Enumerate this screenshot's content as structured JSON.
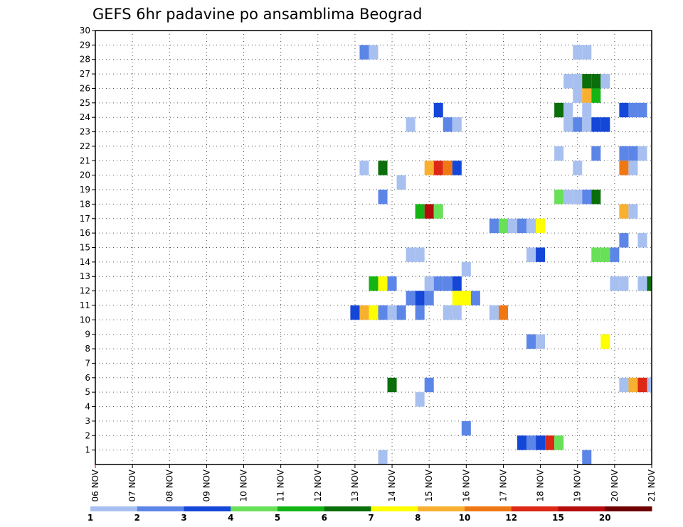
{
  "chart_data": {
    "type": "heatmap",
    "title": "GEFS 6hr padavine po ansamblima Beograd",
    "xlabel": "",
    "ylabel": "",
    "x_ticks": [
      "06 NOV",
      "07 NOV",
      "08 NOV",
      "09 NOV",
      "10 NOV",
      "11 NOV",
      "12 NOV",
      "13 NOV",
      "14 NOV",
      "15 NOV",
      "16 NOV",
      "17 NOV",
      "18 NOV",
      "19 NOV",
      "20 NOV",
      "21 NOV"
    ],
    "x_axis_units": "6-hour steps from 06 NOV 00Z",
    "xlim_steps": [
      0,
      60
    ],
    "y_ticks": [
      1,
      2,
      3,
      4,
      5,
      6,
      7,
      8,
      9,
      10,
      11,
      12,
      13,
      14,
      15,
      16,
      17,
      18,
      19,
      20,
      21,
      22,
      23,
      24,
      25,
      26,
      27,
      28,
      29,
      30
    ],
    "ylim": [
      0,
      30
    ],
    "grid": true,
    "legend_position": "bottom",
    "legend_levels": [
      1,
      2,
      3,
      4,
      5,
      6,
      7,
      8,
      10,
      12,
      15,
      20
    ],
    "legend_colors": [
      "#a8c0f0",
      "#5c85e8",
      "#1446d8",
      "#68e058",
      "#14b414",
      "#0a6e0a",
      "#ffff00",
      "#f8b030",
      "#f07814",
      "#dc2814",
      "#b40c0c",
      "#6e0000"
    ],
    "cells": [
      {
        "step": 29,
        "member": 29,
        "class": 2
      },
      {
        "step": 30,
        "member": 29,
        "class": 1
      },
      {
        "step": 52,
        "member": 29,
        "class": 1
      },
      {
        "step": 53,
        "member": 29,
        "class": 1
      },
      {
        "step": 51,
        "member": 27,
        "class": 1
      },
      {
        "step": 52,
        "member": 27,
        "class": 1
      },
      {
        "step": 53,
        "member": 27,
        "class": 6
      },
      {
        "step": 54,
        "member": 27,
        "class": 6
      },
      {
        "step": 55,
        "member": 27,
        "class": 1
      },
      {
        "step": 52,
        "member": 26,
        "class": 1
      },
      {
        "step": 53,
        "member": 26,
        "class": 8
      },
      {
        "step": 54,
        "member": 26,
        "class": 5
      },
      {
        "step": 37,
        "member": 25,
        "class": 3
      },
      {
        "step": 50,
        "member": 25,
        "class": 6
      },
      {
        "step": 51,
        "member": 25,
        "class": 1
      },
      {
        "step": 53,
        "member": 25,
        "class": 1
      },
      {
        "step": 57,
        "member": 25,
        "class": 3
      },
      {
        "step": 58,
        "member": 25,
        "class": 2
      },
      {
        "step": 59,
        "member": 25,
        "class": 2
      },
      {
        "step": 34,
        "member": 24,
        "class": 1
      },
      {
        "step": 38,
        "member": 24,
        "class": 2
      },
      {
        "step": 39,
        "member": 24,
        "class": 1
      },
      {
        "step": 51,
        "member": 24,
        "class": 1
      },
      {
        "step": 52,
        "member": 24,
        "class": 2
      },
      {
        "step": 53,
        "member": 24,
        "class": 1
      },
      {
        "step": 54,
        "member": 24,
        "class": 3
      },
      {
        "step": 55,
        "member": 24,
        "class": 3
      },
      {
        "step": 50,
        "member": 22,
        "class": 1
      },
      {
        "step": 54,
        "member": 22,
        "class": 2
      },
      {
        "step": 57,
        "member": 22,
        "class": 2
      },
      {
        "step": 58,
        "member": 22,
        "class": 2
      },
      {
        "step": 59,
        "member": 22,
        "class": 1
      },
      {
        "step": 29,
        "member": 21,
        "class": 1
      },
      {
        "step": 31,
        "member": 21,
        "class": 6
      },
      {
        "step": 36,
        "member": 21,
        "class": 8
      },
      {
        "step": 37,
        "member": 21,
        "class": 10
      },
      {
        "step": 38,
        "member": 21,
        "class": 9
      },
      {
        "step": 39,
        "member": 21,
        "class": 3
      },
      {
        "step": 52,
        "member": 21,
        "class": 1
      },
      {
        "step": 57,
        "member": 21,
        "class": 9
      },
      {
        "step": 58,
        "member": 21,
        "class": 1
      },
      {
        "step": 33,
        "member": 20,
        "class": 1
      },
      {
        "step": 31,
        "member": 19,
        "class": 2
      },
      {
        "step": 50,
        "member": 19,
        "class": 4
      },
      {
        "step": 51,
        "member": 19,
        "class": 1
      },
      {
        "step": 52,
        "member": 19,
        "class": 1
      },
      {
        "step": 53,
        "member": 19,
        "class": 2
      },
      {
        "step": 54,
        "member": 19,
        "class": 6
      },
      {
        "step": 35,
        "member": 18,
        "class": 5
      },
      {
        "step": 36,
        "member": 18,
        "class": 11
      },
      {
        "step": 37,
        "member": 18,
        "class": 4
      },
      {
        "step": 57,
        "member": 18,
        "class": 8
      },
      {
        "step": 58,
        "member": 18,
        "class": 1
      },
      {
        "step": 43,
        "member": 17,
        "class": 2
      },
      {
        "step": 44,
        "member": 17,
        "class": 4
      },
      {
        "step": 45,
        "member": 17,
        "class": 1
      },
      {
        "step": 46,
        "member": 17,
        "class": 2
      },
      {
        "step": 47,
        "member": 17,
        "class": 1
      },
      {
        "step": 48,
        "member": 17,
        "class": 7
      },
      {
        "step": 57,
        "member": 16,
        "class": 2
      },
      {
        "step": 59,
        "member": 16,
        "class": 1
      },
      {
        "step": 34,
        "member": 15,
        "class": 1
      },
      {
        "step": 35,
        "member": 15,
        "class": 1
      },
      {
        "step": 47,
        "member": 15,
        "class": 1
      },
      {
        "step": 48,
        "member": 15,
        "class": 3
      },
      {
        "step": 54,
        "member": 15,
        "class": 4
      },
      {
        "step": 55,
        "member": 15,
        "class": 4
      },
      {
        "step": 56,
        "member": 15,
        "class": 2
      },
      {
        "step": 40,
        "member": 14,
        "class": 1
      },
      {
        "step": 30,
        "member": 13,
        "class": 5
      },
      {
        "step": 31,
        "member": 13,
        "class": 7
      },
      {
        "step": 32,
        "member": 13,
        "class": 2
      },
      {
        "step": 36,
        "member": 13,
        "class": 1
      },
      {
        "step": 37,
        "member": 13,
        "class": 2
      },
      {
        "step": 38,
        "member": 13,
        "class": 2
      },
      {
        "step": 39,
        "member": 13,
        "class": 3
      },
      {
        "step": 56,
        "member": 13,
        "class": 1
      },
      {
        "step": 57,
        "member": 13,
        "class": 1
      },
      {
        "step": 59,
        "member": 13,
        "class": 1
      },
      {
        "step": 60,
        "member": 13,
        "class": 6
      },
      {
        "step": 34,
        "member": 12,
        "class": 2
      },
      {
        "step": 35,
        "member": 12,
        "class": 3
      },
      {
        "step": 36,
        "member": 12,
        "class": 2
      },
      {
        "step": 39,
        "member": 12,
        "class": 7
      },
      {
        "step": 40,
        "member": 12,
        "class": 7
      },
      {
        "step": 41,
        "member": 12,
        "class": 2
      },
      {
        "step": 28,
        "member": 11,
        "class": 3
      },
      {
        "step": 29,
        "member": 11,
        "class": 8
      },
      {
        "step": 30,
        "member": 11,
        "class": 7
      },
      {
        "step": 31,
        "member": 11,
        "class": 2
      },
      {
        "step": 32,
        "member": 11,
        "class": 1
      },
      {
        "step": 33,
        "member": 11,
        "class": 2
      },
      {
        "step": 35,
        "member": 11,
        "class": 2
      },
      {
        "step": 38,
        "member": 11,
        "class": 1
      },
      {
        "step": 39,
        "member": 11,
        "class": 1
      },
      {
        "step": 43,
        "member": 11,
        "class": 1
      },
      {
        "step": 44,
        "member": 11,
        "class": 9
      },
      {
        "step": 47,
        "member": 9,
        "class": 2
      },
      {
        "step": 48,
        "member": 9,
        "class": 1
      },
      {
        "step": 55,
        "member": 9,
        "class": 7
      },
      {
        "step": 32,
        "member": 6,
        "class": 6
      },
      {
        "step": 36,
        "member": 6,
        "class": 2
      },
      {
        "step": 57,
        "member": 6,
        "class": 1
      },
      {
        "step": 58,
        "member": 6,
        "class": 8
      },
      {
        "step": 59,
        "member": 6,
        "class": 10
      },
      {
        "step": 60,
        "member": 6,
        "class": 1
      },
      {
        "step": 35,
        "member": 5,
        "class": 1
      },
      {
        "step": 40,
        "member": 3,
        "class": 2
      },
      {
        "step": 46,
        "member": 2,
        "class": 3
      },
      {
        "step": 47,
        "member": 2,
        "class": 2
      },
      {
        "step": 48,
        "member": 2,
        "class": 3
      },
      {
        "step": 49,
        "member": 2,
        "class": 10
      },
      {
        "step": 50,
        "member": 2,
        "class": 4
      },
      {
        "step": 31,
        "member": 1,
        "class": 1
      },
      {
        "step": 53,
        "member": 1,
        "class": 2
      }
    ]
  }
}
